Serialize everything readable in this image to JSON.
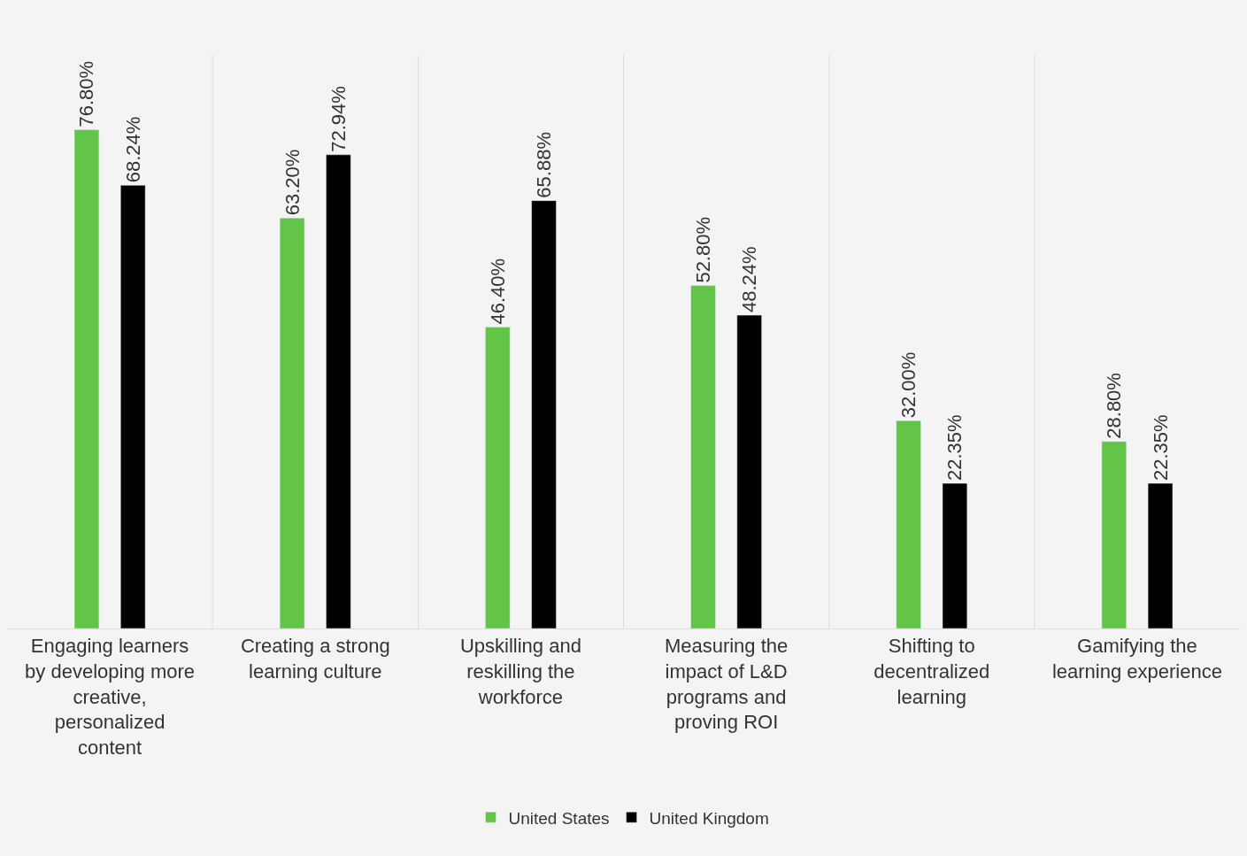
{
  "chart_data": {
    "type": "bar",
    "categories": [
      "Engaging learners by developing more creative, personalized content",
      "Creating a strong learning culture",
      "Upskilling and reskilling the workforce",
      "Measuring the impact of L&D programs and proving ROI",
      "Shifting to decentralized learning",
      "Gamifying the learning experience"
    ],
    "series": [
      {
        "name": "United States",
        "color": "#62c548",
        "values": [
          76.8,
          63.2,
          46.4,
          52.8,
          32.0,
          28.8
        ],
        "value_labels": [
          "76.80%",
          "63.20%",
          "46.40%",
          "52.80%",
          "32.00%",
          "28.80%"
        ]
      },
      {
        "name": "United Kingdom",
        "color": "#000000",
        "values": [
          68.24,
          72.94,
          65.88,
          48.24,
          22.35,
          22.35
        ],
        "value_labels": [
          "68.24%",
          "72.94%",
          "65.88%",
          "48.24%",
          "22.35%",
          "22.35%"
        ]
      }
    ],
    "grid": "x",
    "legend": "bottom",
    "tick_labels": "x"
  }
}
